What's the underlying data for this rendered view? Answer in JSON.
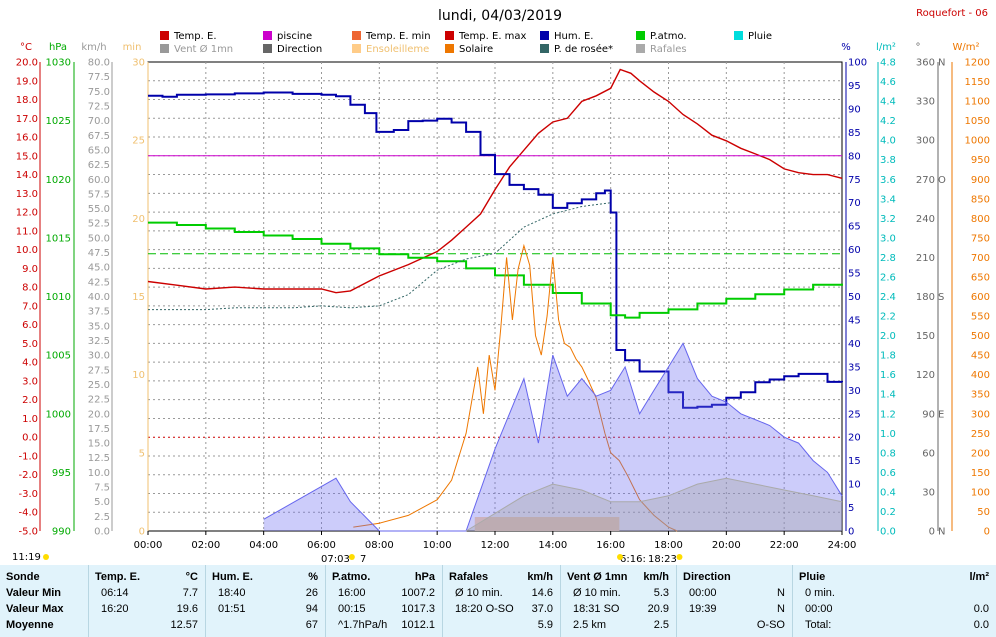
{
  "title": "lundi, 04/03/2019",
  "station": "Roquefort - 06",
  "legend": [
    {
      "label": "Temp. E.",
      "color": "#cc0000"
    },
    {
      "label": "piscine",
      "color": "#cc00cc"
    },
    {
      "label": "Temp. E. min",
      "color": "#ee6633"
    },
    {
      "label": "Temp. E. max",
      "color": "#cc0000"
    },
    {
      "label": "Hum. E.",
      "color": "#0000aa"
    },
    {
      "label": "P.atmo.",
      "color": "#00cc00"
    },
    {
      "label": "Pluie",
      "color": "#00dddd"
    },
    {
      "label": "Vent Ø 1mn",
      "color": "#999999"
    },
    {
      "label": "Direction",
      "color": "#666666"
    },
    {
      "label": "Ensoleilleme",
      "color": "#ffcc88"
    },
    {
      "label": "Solaire",
      "color": "#ee7700"
    },
    {
      "label": "P. de rosée*",
      "color": "#336666"
    },
    {
      "label": "Rafales",
      "color": "#aaaaaa"
    }
  ],
  "axis_units": {
    "temp": "°C",
    "press": "hPa",
    "wind": "km/h",
    "min": "min",
    "hum": "%",
    "rain": "l/m²",
    "dir": "°",
    "solar": "W/m²"
  },
  "bottom_marks": {
    "left": "11:19",
    "sunrise": "07:03",
    "sunrise_suffix": "7",
    "sunset": "18:23",
    "sunset_prefix": "6:16:"
  },
  "chart_data": {
    "type": "line",
    "x_ticks": [
      "00:00",
      "02:00",
      "04:00",
      "06:00",
      "08:00",
      "10:00",
      "12:00",
      "14:00",
      "16:00",
      "18:00",
      "20:00",
      "22:00",
      "24:00"
    ],
    "axes": {
      "temp_c": {
        "range": [
          -5,
          20
        ],
        "step": 1
      },
      "pressure_hpa": {
        "range": [
          990,
          1030
        ],
        "ticks": [
          990,
          995,
          1000,
          1005,
          1010,
          1015,
          1020,
          1025,
          1030
        ]
      },
      "wind_kmh": {
        "range": [
          0,
          80
        ],
        "step": 2.5
      },
      "minutes": {
        "range": [
          0,
          30
        ],
        "ticks": [
          0,
          5,
          10,
          15,
          20,
          25,
          30
        ]
      },
      "humidity_pct": {
        "range": [
          0,
          100
        ],
        "step": 5
      },
      "rain_lm2": {
        "range": [
          0,
          4.8
        ],
        "step": 0.2
      },
      "direction_deg": {
        "range": [
          0,
          360
        ],
        "ticks": [
          0,
          30,
          60,
          90,
          120,
          150,
          180,
          210,
          240,
          270,
          300,
          330,
          360
        ],
        "cardinals": {
          "0": "N",
          "90": "E",
          "180": "S",
          "270": "O",
          "360": "N"
        }
      },
      "solar_wm2": {
        "range": [
          0,
          1200
        ],
        "step": 50
      }
    },
    "series": [
      {
        "name": "Temp. E.",
        "axis": "temp_c",
        "x": [
          0,
          1,
          2,
          3,
          4,
          5,
          6,
          6.5,
          7,
          8,
          9,
          10,
          10.5,
          11,
          11.5,
          12,
          12.5,
          13,
          13.5,
          14,
          14.5,
          15,
          15.5,
          16,
          16.33,
          16.7,
          17,
          17.5,
          18,
          18.5,
          19,
          19.5,
          20,
          20.5,
          21,
          21.5,
          22,
          22.5,
          23,
          23.5,
          24
        ],
        "values": [
          8.3,
          8.1,
          7.9,
          8.0,
          7.9,
          7.9,
          7.9,
          7.7,
          7.8,
          8.6,
          9.2,
          9.9,
          10.5,
          11.2,
          11.9,
          13.2,
          14.4,
          15.3,
          16.2,
          16.8,
          17.0,
          17.9,
          18.2,
          18.6,
          19.6,
          19.4,
          19.0,
          18.4,
          17.9,
          17.2,
          16.7,
          16.1,
          15.8,
          15.4,
          15.1,
          14.8,
          14.3,
          14.1,
          14.0,
          14.0,
          13.8
        ]
      },
      {
        "name": "piscine",
        "axis": "temp_c",
        "x": [
          0,
          24
        ],
        "values": [
          15.0,
          15.0
        ]
      },
      {
        "name": "Hum. E.",
        "axis": "humidity_pct",
        "x": [
          0,
          0.5,
          1,
          2,
          3,
          4,
          5,
          6,
          6.5,
          7,
          7.5,
          7.9,
          8.5,
          9,
          9.5,
          10,
          10.5,
          11,
          11.5,
          12,
          12.5,
          13,
          13.5,
          14,
          14.5,
          15,
          15.5,
          15.8,
          16,
          16.2,
          16.5,
          17,
          17.5,
          18,
          18.5,
          19,
          19.5,
          20,
          20.5,
          21,
          21.5,
          22,
          22.5,
          23,
          23.5,
          24
        ],
        "values": [
          92.8,
          92.6,
          93.0,
          93.1,
          93.3,
          93.5,
          93.2,
          93.0,
          92.7,
          90.9,
          89.1,
          85.1,
          85.5,
          87.4,
          87.5,
          87.9,
          87.1,
          85.1,
          80.2,
          76.1,
          73.8,
          72.9,
          71.7,
          68.9,
          69.9,
          70.7,
          72.0,
          72.6,
          67.9,
          38.6,
          36.4,
          34.0,
          34.0,
          29.6,
          26.3,
          26.5,
          26.9,
          28.4,
          29.6,
          31.7,
          32.3,
          33.0,
          33.5,
          33.5,
          31.8,
          31.7
        ]
      },
      {
        "name": "P.atmo.",
        "axis": "pressure_hpa",
        "x": [
          0,
          1,
          2,
          3,
          4,
          5,
          6,
          7,
          8,
          9,
          10,
          11,
          12,
          13,
          14,
          15,
          16,
          16.5,
          17,
          18,
          19,
          20,
          21,
          22,
          23,
          24
        ],
        "values": [
          1016.3,
          1016.1,
          1015.8,
          1015.5,
          1015.2,
          1014.9,
          1014.5,
          1014.1,
          1013.6,
          1013.3,
          1013.0,
          1012.4,
          1011.8,
          1011.0,
          1010.3,
          1009.4,
          1008.4,
          1008.2,
          1008.6,
          1008.9,
          1009.4,
          1009.8,
          1010.2,
          1010.6,
          1011.0,
          1011.1
        ]
      },
      {
        "name": "P. de rosée*",
        "axis": "temp_c",
        "x": [
          0,
          1,
          2,
          3,
          4,
          5,
          6,
          7,
          8,
          9,
          10,
          11,
          12,
          13,
          14,
          15,
          16
        ],
        "values": [
          6.8,
          6.8,
          6.8,
          6.9,
          6.9,
          6.9,
          7.0,
          6.9,
          7.0,
          7.6,
          8.9,
          9.5,
          9.8,
          11.2,
          11.9,
          12.3,
          12.5
        ]
      },
      {
        "name": "Solaire",
        "axis": "solar_wm2",
        "x": [
          7.1,
          8,
          9,
          10,
          10.5,
          11,
          11.4,
          11.6,
          11.8,
          12,
          12.2,
          12.4,
          12.6,
          12.8,
          13,
          13.2,
          13.4,
          13.6,
          13.8,
          14,
          14.2,
          14.4,
          14.6,
          14.8,
          15,
          15.2,
          15.5,
          15.8,
          16,
          16.3,
          16.6,
          17,
          17.5,
          18,
          18.3
        ],
        "values": [
          10,
          20,
          40,
          80,
          130,
          250,
          420,
          300,
          450,
          360,
          520,
          700,
          540,
          670,
          730,
          680,
          500,
          450,
          550,
          700,
          540,
          480,
          470,
          440,
          420,
          390,
          340,
          250,
          200,
          180,
          140,
          80,
          40,
          10,
          0
        ]
      },
      {
        "name": "Rafales",
        "axis": "wind_kmh",
        "x": [
          4,
          6.5,
          7,
          8,
          9,
          10,
          11,
          12,
          13,
          13.5,
          14,
          14.5,
          15,
          15.5,
          16,
          16.5,
          17,
          17.5,
          18,
          18.5,
          19,
          19.5,
          20,
          20.5,
          21,
          21.5,
          22,
          22.5,
          23,
          23.5,
          24
        ],
        "values": [
          2,
          9,
          5,
          0,
          0,
          0,
          0,
          14,
          26,
          15,
          30,
          23,
          26,
          23,
          24,
          28,
          20,
          24,
          28,
          32,
          26,
          23,
          22,
          20,
          19,
          18,
          16,
          15,
          12,
          10,
          6
        ]
      },
      {
        "name": "Vent Ø 1mn",
        "axis": "wind_kmh",
        "x": [
          11,
          12,
          13,
          14,
          15,
          16,
          17,
          18,
          19,
          20,
          21,
          22,
          23,
          24
        ],
        "values": [
          0,
          3,
          6,
          8,
          7,
          5,
          5,
          6,
          8,
          9,
          8,
          7,
          6,
          5
        ]
      }
    ]
  },
  "stats": {
    "columns": [
      {
        "head": "Sonde",
        "unit": "",
        "rows": [
          "Valeur Min",
          "Valeur Max",
          "Moyenne"
        ]
      },
      {
        "head": "Temp. E.",
        "unit": "°C",
        "rows": [
          [
            "06:14",
            "7.7"
          ],
          [
            "16:20",
            "19.6"
          ],
          [
            "",
            "12.57"
          ]
        ]
      },
      {
        "head": "Hum. E.",
        "unit": "%",
        "rows": [
          [
            "18:40",
            "26"
          ],
          [
            "01:51",
            "94"
          ],
          [
            "",
            "67"
          ]
        ]
      },
      {
        "head": "P.atmo.",
        "unit": "hPa",
        "rows": [
          [
            "16:00",
            "1007.2"
          ],
          [
            "00:15",
            "1017.3"
          ],
          [
            "^1.7hPa/h",
            "1012.1"
          ]
        ]
      },
      {
        "head": "Rafales",
        "unit": "km/h",
        "rows": [
          [
            "Ø 10 min.",
            "14.6"
          ],
          [
            "18:20  O-SO",
            "37.0"
          ],
          [
            "",
            "5.9"
          ]
        ]
      },
      {
        "head": "Vent Ø 1mn",
        "unit": "km/h",
        "rows": [
          [
            "Ø 10 min.",
            "5.3"
          ],
          [
            "18:31  SO",
            "20.9"
          ],
          [
            "2.5 km",
            "2.5"
          ]
        ]
      },
      {
        "head": "Direction",
        "unit": "",
        "rows": [
          [
            "00:00",
            "N"
          ],
          [
            "19:39",
            "N"
          ],
          [
            "",
            "O-SO"
          ]
        ]
      },
      {
        "head": "Pluie",
        "unit": "l/m²",
        "rows": [
          [
            "0 min.",
            ""
          ],
          [
            "00:00",
            "0.0"
          ],
          [
            "Total:",
            "0.0"
          ]
        ]
      }
    ]
  }
}
